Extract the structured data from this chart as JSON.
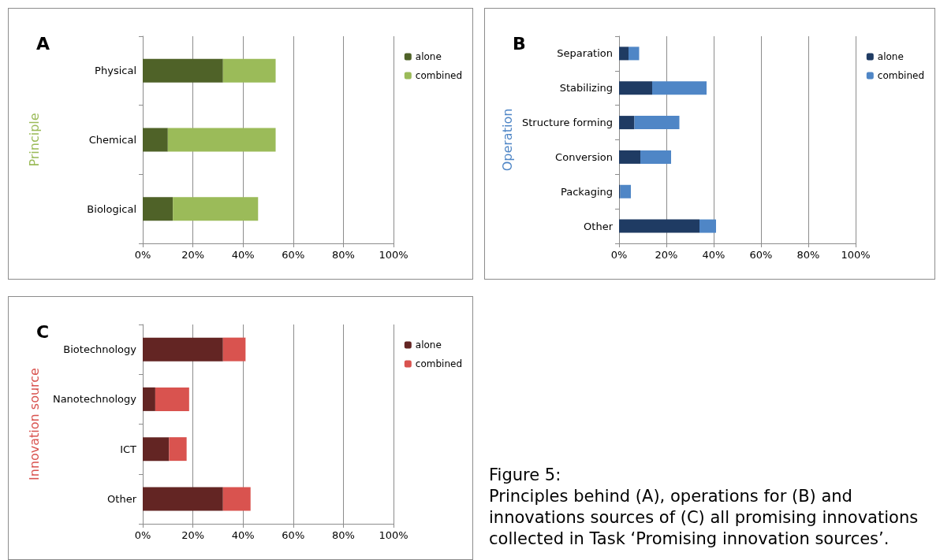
{
  "chart_data": [
    {
      "type": "bar",
      "title": "A",
      "orientation": "horizontal",
      "stacked": true,
      "ylabel": "Principle",
      "categories": [
        "Physical",
        "Chemical",
        "Biological"
      ],
      "series": [
        {
          "name": "alone",
          "color": "#4f6228",
          "values": [
            32,
            10,
            12
          ]
        },
        {
          "name": "combined",
          "color": "#9bbb59",
          "values": [
            21,
            43,
            34
          ]
        }
      ],
      "xlim": [
        0,
        100
      ],
      "xticks": [
        {
          "value": 0,
          "label": "0%"
        },
        {
          "value": 20,
          "label": "20%"
        },
        {
          "value": 40,
          "label": "40%"
        },
        {
          "value": 60,
          "label": "60%"
        },
        {
          "value": 80,
          "label": "80%"
        },
        {
          "value": 100,
          "label": "100%"
        }
      ],
      "grid": "x",
      "legend": "top right"
    },
    {
      "type": "bar",
      "title": "B",
      "orientation": "horizontal",
      "stacked": true,
      "ylabel": "Operation",
      "categories": [
        "Separation",
        "Stabilizing",
        "Structure forming",
        "Conversion",
        "Packaging",
        "Other"
      ],
      "series": [
        {
          "name": "alone",
          "color": "#1f3b63",
          "values": [
            4,
            14,
            6.5,
            9,
            0.5,
            34
          ]
        },
        {
          "name": "combined",
          "color": "#4f86c6",
          "values": [
            4.5,
            23,
            19,
            13,
            4.5,
            7
          ]
        }
      ],
      "xlim": [
        0,
        100
      ],
      "xticks": [
        {
          "value": 0,
          "label": "0%"
        },
        {
          "value": 20,
          "label": "20%"
        },
        {
          "value": 40,
          "label": "40%"
        },
        {
          "value": 60,
          "label": "60%"
        },
        {
          "value": 80,
          "label": "80%"
        },
        {
          "value": 100,
          "label": "100%"
        }
      ],
      "grid": "x",
      "legend": "top right"
    },
    {
      "type": "bar",
      "title": "C",
      "orientation": "horizontal",
      "stacked": true,
      "ylabel": "Innovation source",
      "categories": [
        "Biotechnology",
        "Nanotechnology",
        "ICT",
        "Other"
      ],
      "series": [
        {
          "name": "alone",
          "color": "#632523",
          "values": [
            32,
            5,
            10.5,
            32
          ]
        },
        {
          "name": "combined",
          "color": "#d9534f",
          "values": [
            9,
            13.5,
            7,
            11
          ]
        }
      ],
      "xlim": [
        0,
        100
      ],
      "xticks": [
        {
          "value": 0,
          "label": "0%"
        },
        {
          "value": 20,
          "label": "20%"
        },
        {
          "value": 40,
          "label": "40%"
        },
        {
          "value": 60,
          "label": "60%"
        },
        {
          "value": 80,
          "label": "80%"
        },
        {
          "value": 100,
          "label": "100%"
        }
      ],
      "grid": "x",
      "legend": "top right"
    },
    {
      "type": "other",
      "annotations": [
        "Figure 5:",
        "Principles behind (A), operations for (B) and innovations sources of (C) all promising innovations collected in Task ‘Promising innovation sources’."
      ]
    }
  ]
}
